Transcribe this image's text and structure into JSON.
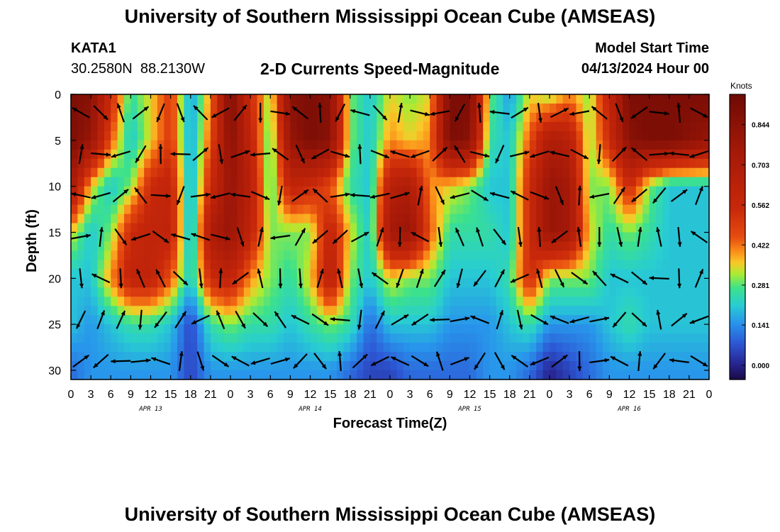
{
  "page": {
    "title": "University of Southern Mississippi Ocean Cube (AMSEAS)",
    "footer_title": "University of Southern Mississippi Ocean Cube (AMSEAS)",
    "station": "KATA1",
    "coords": "30.2580N  88.2130W",
    "subtitle": "2-D Currents Speed-Magnitude",
    "model_start_label": "Model Start Time",
    "model_start_value": "04/13/2024 Hour 00"
  },
  "chart_data": {
    "type": "heatmap",
    "title": "2-D Currents Speed-Magnitude",
    "xlabel": "Forecast Time(Z)",
    "ylabel": "Depth (ft)",
    "x_range_hours": [
      0,
      96
    ],
    "y_range_ft": [
      0,
      31
    ],
    "x_tick_hours": [
      0,
      3,
      6,
      9,
      12,
      15,
      18,
      21,
      24,
      27,
      30,
      33,
      36,
      39,
      42,
      45,
      48,
      51,
      54,
      57,
      60,
      63,
      66,
      69,
      72,
      75,
      78,
      81,
      84,
      87,
      90,
      93,
      96
    ],
    "x_tick_labels": [
      "0",
      "3",
      "6",
      "9",
      "12",
      "15",
      "18",
      "21",
      "0",
      "3",
      "6",
      "9",
      "12",
      "15",
      "18",
      "21",
      "0",
      "3",
      "6",
      "9",
      "12",
      "15",
      "18",
      "21",
      "0",
      "3",
      "6",
      "9",
      "12",
      "15",
      "18",
      "21",
      "0"
    ],
    "y_ticks": [
      0,
      5,
      10,
      15,
      20,
      25,
      30
    ],
    "date_labels": [
      {
        "label": "APR 13",
        "hour": 12
      },
      {
        "label": "APR 14",
        "hour": 36
      },
      {
        "label": "APR 15",
        "hour": 60
      },
      {
        "label": "APR 16",
        "hour": 84
      }
    ],
    "colorbar": {
      "unit": "Knots",
      "min": -0.05,
      "max": 0.95,
      "ticks": [
        0.0,
        0.141,
        0.281,
        0.422,
        0.562,
        0.703,
        0.844
      ],
      "tick_labels": [
        "0.000",
        "0.141",
        "0.281",
        "0.422",
        "0.562",
        "0.703",
        "0.844"
      ]
    },
    "speed_grid_knots": {
      "depths_ft": [
        0,
        5,
        10,
        15,
        20,
        25,
        30
      ],
      "hours": [
        0,
        3,
        6,
        9,
        12,
        15,
        18,
        21,
        24,
        27,
        30,
        33,
        36,
        39,
        42,
        45,
        48,
        51,
        54,
        57,
        60,
        63,
        66,
        69,
        72,
        75,
        78,
        81,
        84,
        87,
        90,
        93,
        96
      ],
      "rows": [
        [
          0.9,
          0.85,
          0.55,
          0.25,
          0.35,
          0.5,
          0.15,
          0.4,
          0.9,
          0.55,
          0.3,
          0.85,
          0.9,
          0.85,
          0.3,
          0.2,
          0.35,
          0.3,
          0.35,
          0.9,
          0.9,
          0.3,
          0.15,
          0.35,
          0.3,
          0.4,
          0.3,
          0.6,
          0.9,
          0.9,
          0.9,
          0.9,
          0.9
        ],
        [
          0.9,
          0.8,
          0.45,
          0.2,
          0.35,
          0.5,
          0.15,
          0.45,
          0.85,
          0.6,
          0.25,
          0.8,
          0.9,
          0.85,
          0.3,
          0.2,
          0.4,
          0.35,
          0.4,
          0.9,
          0.85,
          0.25,
          0.2,
          0.45,
          0.7,
          0.65,
          0.3,
          0.55,
          0.85,
          0.9,
          0.9,
          0.85,
          0.8
        ],
        [
          0.75,
          0.35,
          0.2,
          0.3,
          0.55,
          0.6,
          0.15,
          0.55,
          0.8,
          0.65,
          0.25,
          0.6,
          0.55,
          0.45,
          0.25,
          0.2,
          0.65,
          0.7,
          0.4,
          0.35,
          0.3,
          0.2,
          0.2,
          0.55,
          0.8,
          0.75,
          0.3,
          0.3,
          0.55,
          0.3,
          0.2,
          0.2,
          0.2
        ],
        [
          0.35,
          0.2,
          0.3,
          0.55,
          0.6,
          0.6,
          0.15,
          0.7,
          0.8,
          0.6,
          0.3,
          0.3,
          0.3,
          0.6,
          0.35,
          0.2,
          0.75,
          0.8,
          0.45,
          0.25,
          0.25,
          0.25,
          0.2,
          0.55,
          0.8,
          0.75,
          0.35,
          0.25,
          0.3,
          0.25,
          0.2,
          0.2,
          0.2
        ],
        [
          0.2,
          0.2,
          0.4,
          0.6,
          0.6,
          0.45,
          0.2,
          0.55,
          0.6,
          0.4,
          0.3,
          0.25,
          0.35,
          0.65,
          0.3,
          0.2,
          0.35,
          0.3,
          0.3,
          0.2,
          0.2,
          0.2,
          0.25,
          0.55,
          0.3,
          0.3,
          0.3,
          0.2,
          0.2,
          0.2,
          0.2,
          0.2,
          0.2
        ],
        [
          0.2,
          0.15,
          0.2,
          0.25,
          0.25,
          0.2,
          0.05,
          0.25,
          0.3,
          0.25,
          0.25,
          0.2,
          0.25,
          0.3,
          0.25,
          0.1,
          0.2,
          0.2,
          0.2,
          0.15,
          0.15,
          0.15,
          0.2,
          0.25,
          0.15,
          0.15,
          0.15,
          0.2,
          0.25,
          0.2,
          0.2,
          0.2,
          0.2
        ],
        [
          0.1,
          0.15,
          0.15,
          0.15,
          0.15,
          0.15,
          0.05,
          0.15,
          0.15,
          0.15,
          0.15,
          0.15,
          0.15,
          0.15,
          0.1,
          0.05,
          0.05,
          0.1,
          0.1,
          0.1,
          0.1,
          0.15,
          0.15,
          0.1,
          0.0,
          0.05,
          0.1,
          0.15,
          0.15,
          0.15,
          0.15,
          0.15,
          0.15
        ]
      ]
    }
  }
}
